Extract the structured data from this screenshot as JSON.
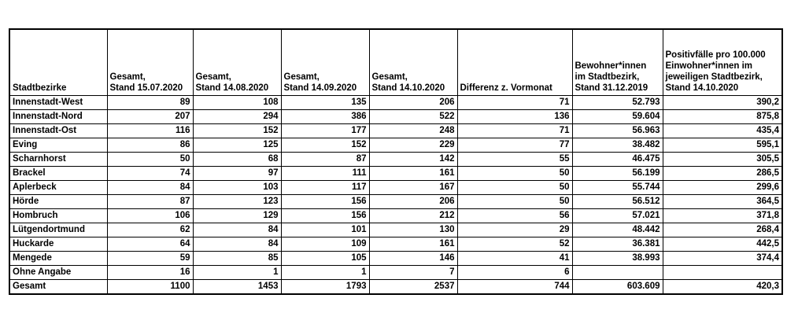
{
  "table": {
    "headers": [
      "Stadtbezirke",
      "Gesamt,\nStand 15.07.2020",
      "Gesamt,\nStand 14.08.2020",
      "Gesamt,\nStand 14.09.2020",
      "Gesamt,\nStand 14.10.2020",
      "Differenz z. Vormonat",
      "Bewohner*innen\nim Stadtbezirk,\nStand 31.12.2019",
      "Positivfälle pro 100.000\nEinwohner*innen im\njeweiligen Stadtbezirk,\nStand 14.10.2020"
    ],
    "rows": [
      [
        "Innenstadt-West",
        "89",
        "108",
        "135",
        "206",
        "71",
        "52.793",
        "390,2"
      ],
      [
        "Innenstadt-Nord",
        "207",
        "294",
        "386",
        "522",
        "136",
        "59.604",
        "875,8"
      ],
      [
        "Innenstadt-Ost",
        "116",
        "152",
        "177",
        "248",
        "71",
        "56.963",
        "435,4"
      ],
      [
        "Eving",
        "86",
        "125",
        "152",
        "229",
        "77",
        "38.482",
        "595,1"
      ],
      [
        "Scharnhorst",
        "50",
        "68",
        "87",
        "142",
        "55",
        "46.475",
        "305,5"
      ],
      [
        "Brackel",
        "74",
        "97",
        "111",
        "161",
        "50",
        "56.199",
        "286,5"
      ],
      [
        "Aplerbeck",
        "84",
        "103",
        "117",
        "167",
        "50",
        "55.744",
        "299,6"
      ],
      [
        "Hörde",
        "87",
        "123",
        "156",
        "206",
        "50",
        "56.512",
        "364,5"
      ],
      [
        "Hombruch",
        "106",
        "129",
        "156",
        "212",
        "56",
        "57.021",
        "371,8"
      ],
      [
        "Lütgendortmund",
        "62",
        "84",
        "101",
        "130",
        "29",
        "48.442",
        "268,4"
      ],
      [
        "Huckarde",
        "64",
        "84",
        "109",
        "161",
        "52",
        "36.381",
        "442,5"
      ],
      [
        "Mengede",
        "59",
        "85",
        "105",
        "146",
        "41",
        "38.993",
        "374,4"
      ],
      [
        "Ohne Angabe",
        "16",
        "1",
        "1",
        "7",
        "6",
        "",
        ""
      ],
      [
        "Gesamt",
        "1100",
        "1453",
        "1793",
        "2537",
        "744",
        "603.609",
        "420,3"
      ]
    ]
  }
}
